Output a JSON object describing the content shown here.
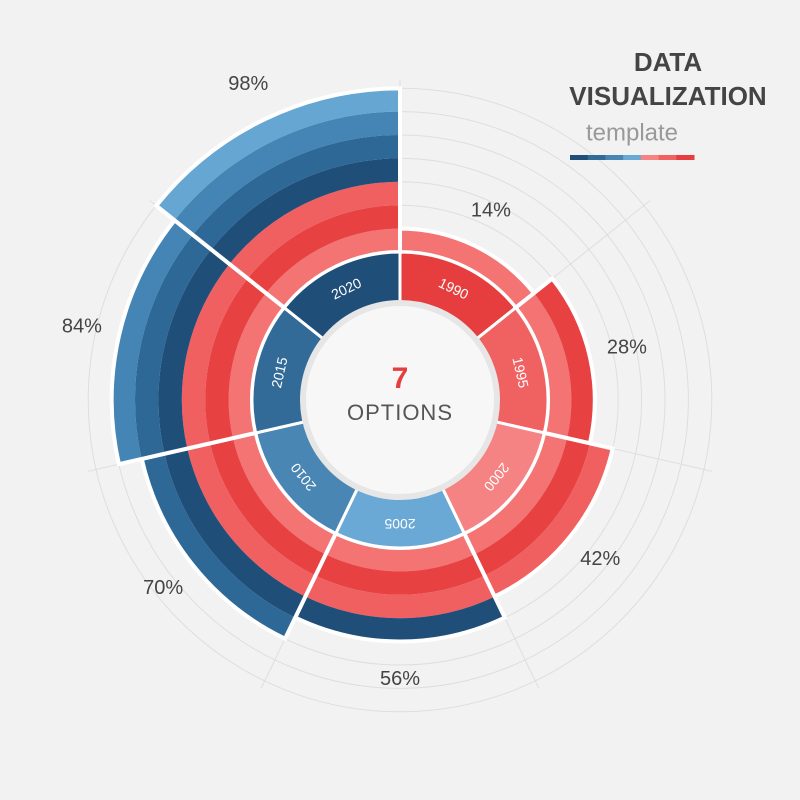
{
  "chart_data": {
    "type": "radial_bar",
    "title": [
      "DATA",
      "VISUALIZATION"
    ],
    "subtitle": "template",
    "center_value": 7,
    "center_label": "OPTIONS",
    "categories": [
      "1990",
      "1995",
      "2000",
      "2005",
      "2010",
      "2015",
      "2020"
    ],
    "values": [
      14,
      28,
      42,
      56,
      70,
      84,
      98
    ],
    "value_labels": [
      "14%",
      "28%",
      "42%",
      "56%",
      "70%",
      "84%",
      "98%"
    ],
    "colors": [
      "#e63e3e",
      "#f06262",
      "#f58383",
      "#6aa9d6",
      "#4a86b3",
      "#336b98",
      "#1f4e79"
    ],
    "band_colors": [
      "#f47373",
      "#e84141",
      "#f06060",
      "#1f4e79",
      "#2e6896",
      "#4585b5",
      "#66a6d2"
    ],
    "rlim": [
      0,
      100
    ]
  }
}
